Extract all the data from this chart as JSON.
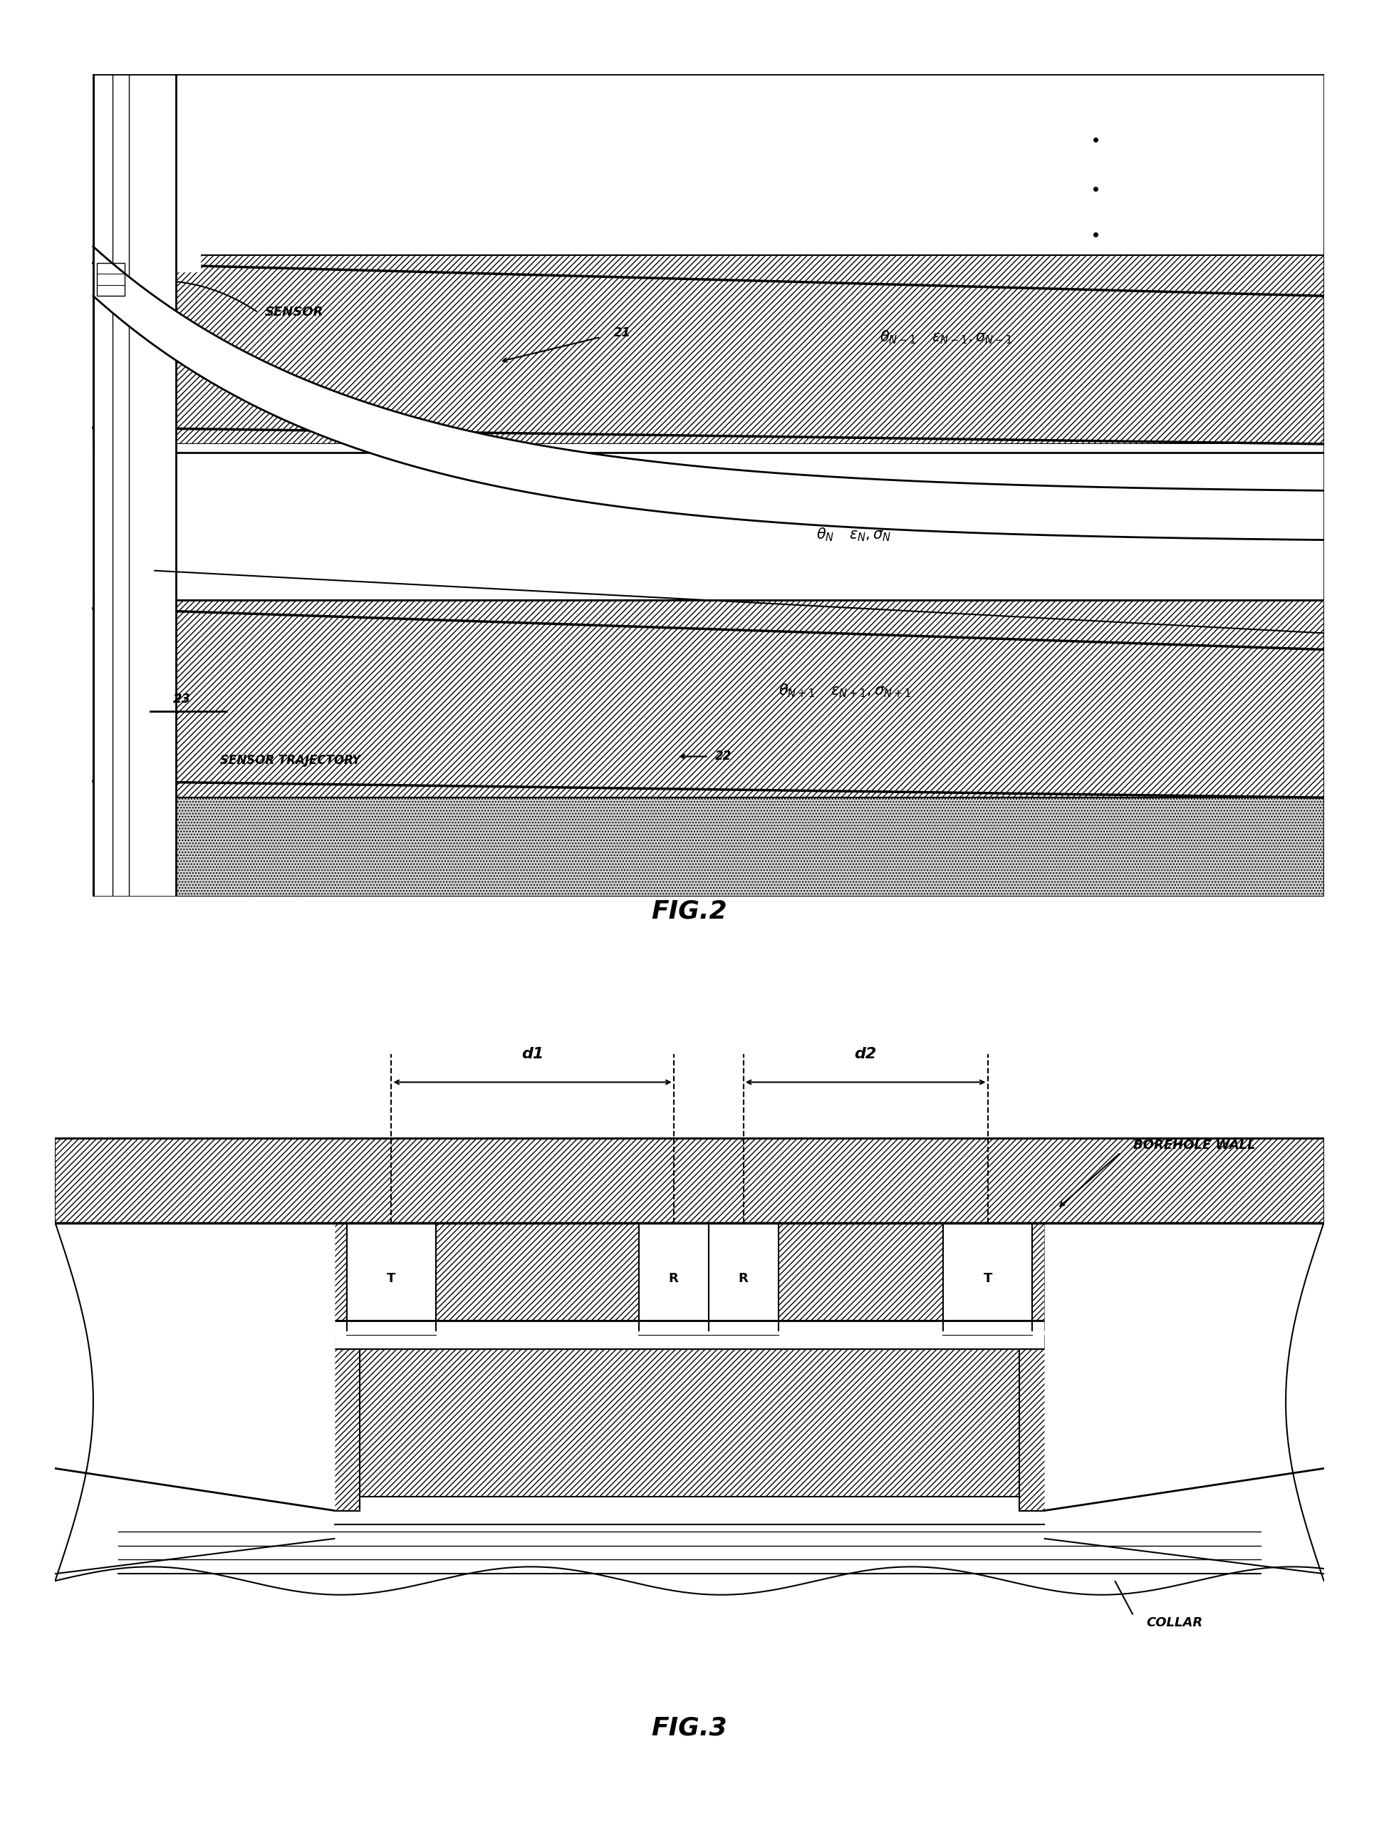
{
  "fig_width": 19.36,
  "fig_height": 25.93,
  "bg_color": "#ffffff",
  "fig2_title": "FIG.2",
  "fig3_title": "FIG.3",
  "label_21": "21",
  "label_22": "22",
  "label_23": "23",
  "label_sensor": "SENSOR",
  "label_traj": "SENSOR TRAJECTORY",
  "label_d1": "d1",
  "label_d2": "d2",
  "label_borehole": "BOREHOLE WALL",
  "label_collar": "COLLAR",
  "label_T": "T",
  "label_R": "R"
}
